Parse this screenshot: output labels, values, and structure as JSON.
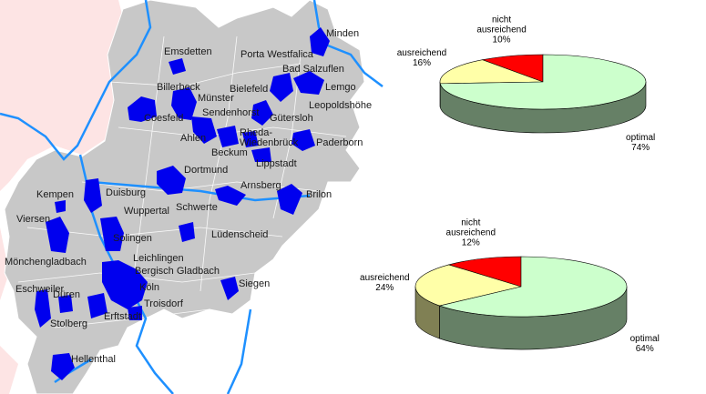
{
  "map": {
    "labels": [
      "Minden",
      "Porta Westfalica",
      "Emsdetten",
      "Bad Salzuflen",
      "Billerbeck",
      "Lemgo",
      "Bielefeld",
      "Münster",
      "Leopoldshöhe",
      "Sendenhorst",
      "Coesfeld",
      "Gütersloh",
      "Ahlen",
      "Rheda-",
      "Wiedenbrück",
      "Paderborn",
      "Beckum",
      "Lippstadt",
      "Dortmund",
      "Arnsberg",
      "Brilon",
      "Kempen",
      "Duisburg",
      "Schwerte",
      "Wuppertal",
      "Viersen",
      "Lüdenscheid",
      "Solingen",
      "Mönchengladbach",
      "Leichlingen",
      "Bergisch Gladbach",
      "Siegen",
      "Eschweiler",
      "Köln",
      "Düren",
      "Troisdorf",
      "Erftstadt",
      "Stolberg",
      "Hellenthal"
    ]
  },
  "chart_data": [
    {
      "type": "pie",
      "categories": [
        "nicht ausreichend",
        "ausreichend",
        "optimal"
      ],
      "values": [
        10,
        16,
        74
      ],
      "value_labels": [
        "10%",
        "16%",
        "74%"
      ],
      "colors": [
        "#ff0000",
        "#ffffa8",
        "#ccffcc"
      ]
    },
    {
      "type": "pie",
      "categories": [
        "nicht ausreichend",
        "ausreichend",
        "optimal"
      ],
      "values": [
        12,
        24,
        64
      ],
      "value_labels": [
        "12%",
        "24%",
        "64%"
      ],
      "colors": [
        "#ff0000",
        "#ffffa8",
        "#ccffcc"
      ]
    }
  ]
}
